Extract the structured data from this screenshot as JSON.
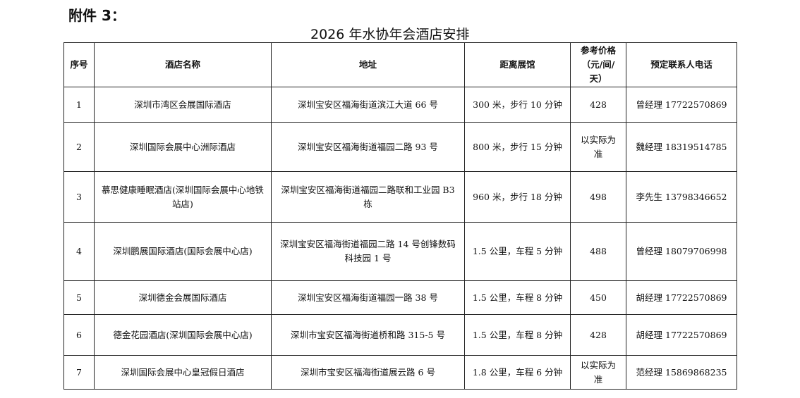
{
  "attachment_label": "附件 3：",
  "title": "2026 年水协年会酒店安排",
  "table": {
    "headers": [
      "序号",
      "酒店名称",
      "地址",
      "距离展馆",
      "参考价格（元/间/天）",
      "预定联系人电话"
    ],
    "rows": [
      {
        "no": "1",
        "name": "深圳市湾区会展国际酒店",
        "address": "深圳宝安区福海街道滨江大道 66 号",
        "distance": "300 米，步行 10 分钟",
        "price": "428",
        "contact": "曾经理 17722570869"
      },
      {
        "no": "2",
        "name": "深圳国际会展中心洲际酒店",
        "address": "深圳宝安区福海街道福园二路 93 号",
        "distance": "800 米，步行 15 分钟",
        "price": "以实际为准",
        "contact": "魏经理 18319514785"
      },
      {
        "no": "3",
        "name": "慕思健康睡眠酒店(深圳国际会展中心地铁站店)",
        "address": "深圳宝安区福海街道福园二路联和工业园 B3 栋",
        "distance": "960 米，步行 18 分钟",
        "price": "498",
        "contact": "李先生 13798346652"
      },
      {
        "no": "4",
        "name": "深圳鹏展国际酒店(国际会展中心店)",
        "address": "深圳宝安区福海街道福园二路 14 号创锋数码科技园 1 号",
        "distance": "1.5 公里，车程 5 分钟",
        "price": "488",
        "contact": "曾经理 18079706998"
      },
      {
        "no": "5",
        "name": "深圳德金会展国际酒店",
        "address": "深圳宝安区福海街道福园一路 38 号",
        "distance": "1.5 公里，车程 8 分钟",
        "price": "450",
        "contact": "胡经理 17722570869"
      },
      {
        "no": "6",
        "name": "德金花园酒店(深圳国际会展中心店)",
        "address": "深圳市宝安区福海街道桥和路 315-5 号",
        "distance": "1.5 公里，车程 8 分钟",
        "price": "428",
        "contact": "胡经理 17722570869"
      },
      {
        "no": "7",
        "name": "深圳国际会展中心皇冠假日酒店",
        "address": "深圳市宝安区福海街道展云路 6 号",
        "distance": "1.8 公里，车程 6 分钟",
        "price": "以实际为准",
        "contact": "范经理 15869868235"
      }
    ]
  }
}
